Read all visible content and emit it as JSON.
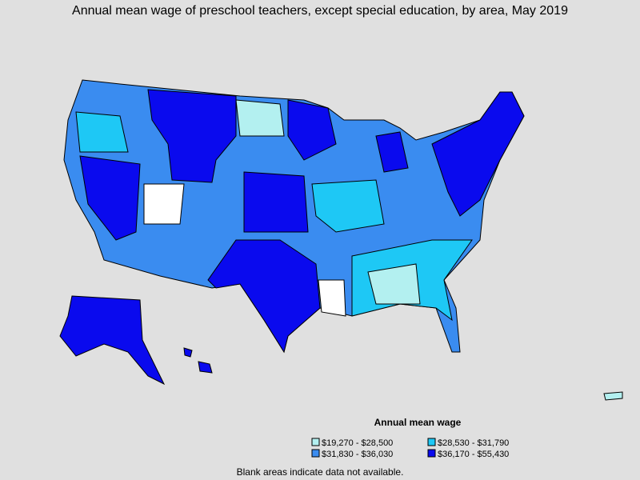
{
  "title": "Annual mean wage of preschool teachers, except special education, by area, May 2019",
  "legend": {
    "title": "Annual mean wage",
    "items": [
      {
        "label": "$19,270 - $28,500",
        "color": "#b3f0f0"
      },
      {
        "label": "$28,530 - $31,790",
        "color": "#1ec8f5"
      },
      {
        "label": "$31,830 - $36,030",
        "color": "#3a8cf0"
      },
      {
        "label": "$36,170 - $55,430",
        "color": "#0a0aee"
      }
    ]
  },
  "note": "Blank areas indicate data not available."
}
